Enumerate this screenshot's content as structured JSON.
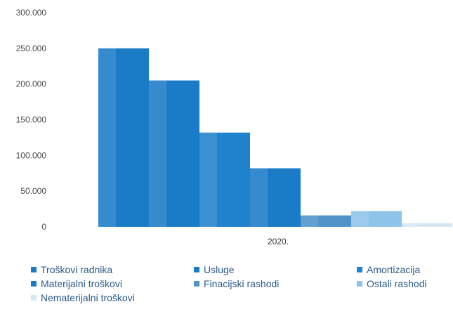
{
  "chart_data": {
    "type": "bar",
    "categories": [
      "2020."
    ],
    "y_ticks": [
      "0",
      "50.000",
      "100.000",
      "150.000",
      "200.000",
      "250.000",
      "300.000"
    ],
    "ylim": [
      0,
      300000
    ],
    "grid": false,
    "legend_position": "bottom",
    "series": [
      {
        "name": "Troškovi radnika",
        "values": [
          250000
        ],
        "color": "#1a7bc6"
      },
      {
        "name": "Usluge",
        "values": [
          205000
        ],
        "color": "#1a7bc6"
      },
      {
        "name": "Amortizacija",
        "values": [
          132000
        ],
        "color": "#1f82cc"
      },
      {
        "name": "Materijalni troškovi",
        "values": [
          82000
        ],
        "color": "#1a7bc6"
      },
      {
        "name": "Finacijski rashodi",
        "values": [
          16000
        ],
        "color": "#4f93c9"
      },
      {
        "name": "Ostali rashodi",
        "values": [
          22000
        ],
        "color": "#8ec3ea"
      },
      {
        "name": "Nematerijalni troškovi",
        "values": [
          5000
        ],
        "color": "#d6e6f3"
      }
    ]
  }
}
